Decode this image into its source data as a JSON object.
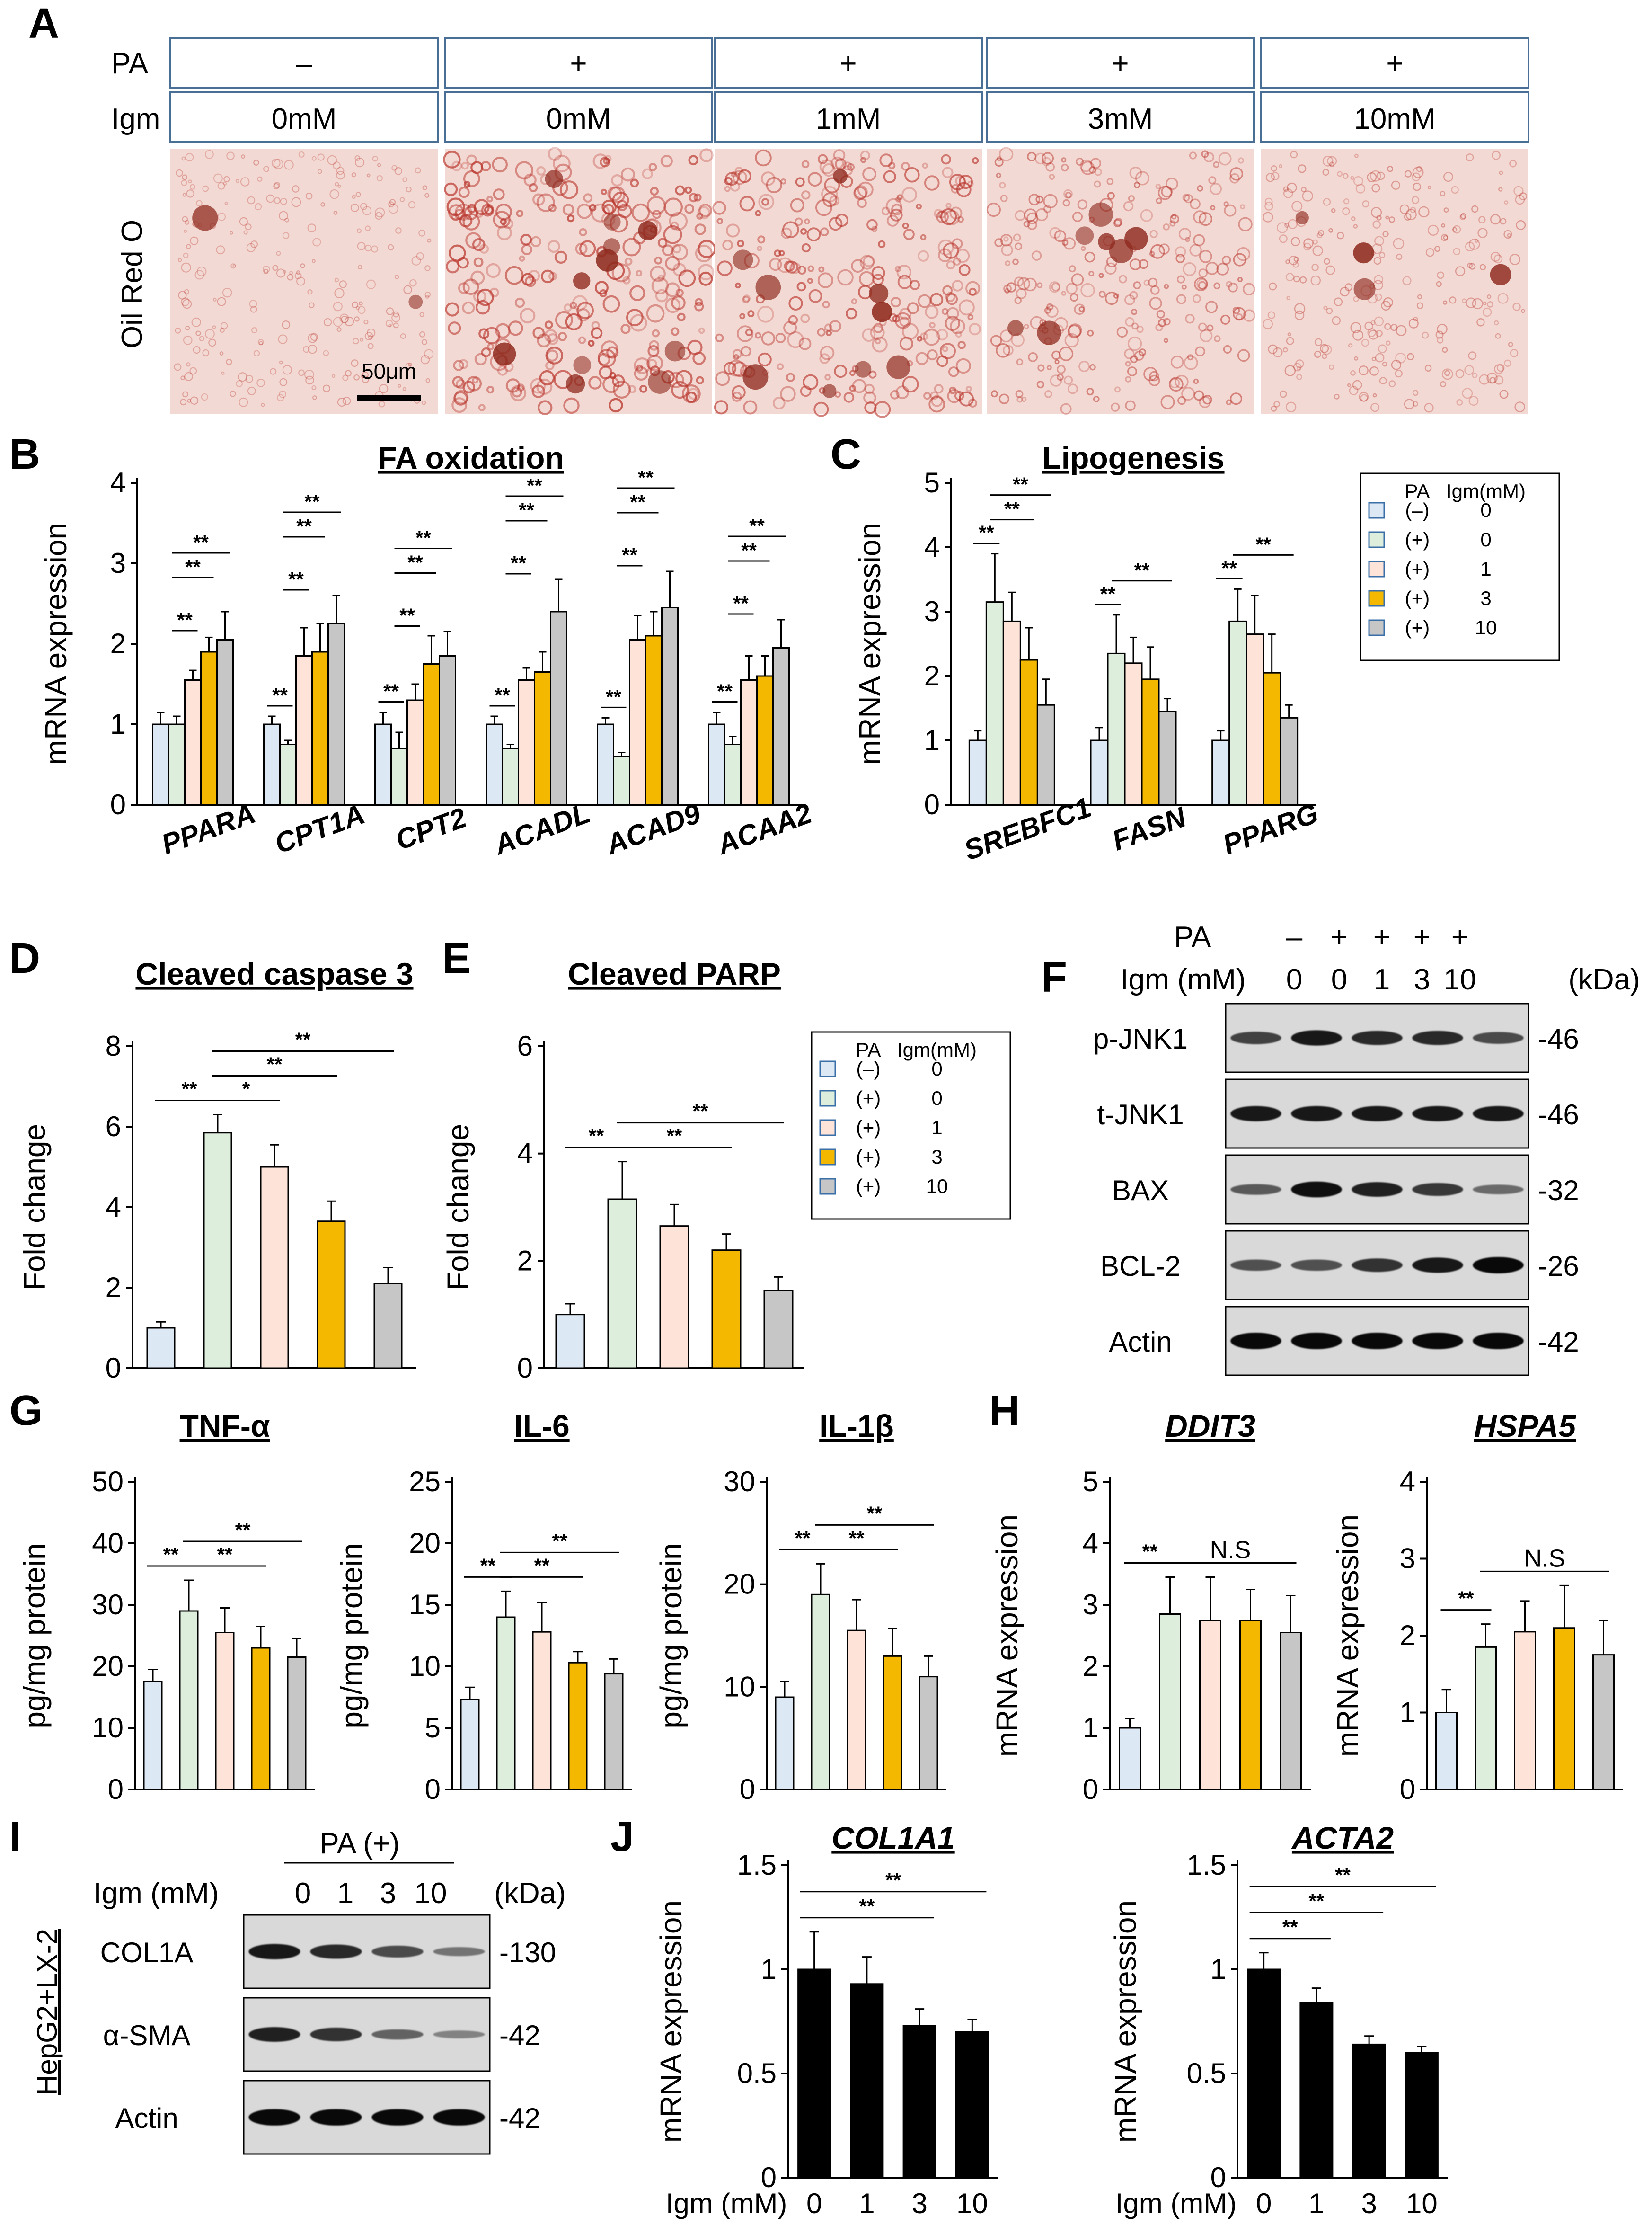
{
  "colors": {
    "groups": [
      "#dce9f5",
      "#ddefdc",
      "#fde3d8",
      "#f5b800",
      "#c6c6c6"
    ],
    "black_bar": "#000000",
    "header_border": "#4a6f96",
    "stain_bg": "#f3d9d3",
    "stain_droplet": "#b8332a"
  },
  "panel_letters": [
    "A",
    "B",
    "C",
    "D",
    "E",
    "F",
    "G",
    "H",
    "I",
    "J"
  ],
  "panel_a": {
    "row_labels": {
      "pa": "PA",
      "igm": "Igm"
    },
    "pa": [
      "–",
      "+",
      "+",
      "+",
      "+"
    ],
    "igm": [
      "0mM",
      "0mM",
      "1mM",
      "3mM",
      "10mM"
    ],
    "stain_label": "Oil Red O",
    "scale_bar": "50μm",
    "stain_intensity": [
      0.2,
      0.9,
      0.75,
      0.55,
      0.3
    ]
  },
  "legend": {
    "header_pa": "PA",
    "header_igm": "Igm(mM)",
    "pa": [
      "(–)",
      "(+)",
      "(+)",
      "(+)",
      "(+)"
    ],
    "igm": [
      "0",
      "0",
      "1",
      "3",
      "10"
    ]
  },
  "chart_data": [
    {
      "id": "B",
      "type": "bar",
      "title": "FA oxidation",
      "ylabel": "mRNA expression",
      "ylim": [
        0,
        4
      ],
      "yticks": [
        "0",
        "1",
        "2",
        "3",
        "4"
      ],
      "categories": [
        "PPARA",
        "CPT1A",
        "CPT2",
        "ACADL",
        "ACAD9",
        "ACAA2"
      ],
      "series_names": [
        "PA(–) 0",
        "PA(+) 0",
        "PA(+) 1",
        "PA(+) 3",
        "PA(+) 10"
      ],
      "values": [
        [
          1.0,
          1.0,
          1.55,
          1.9,
          2.05
        ],
        [
          1.0,
          0.75,
          1.85,
          1.9,
          2.25
        ],
        [
          1.0,
          0.7,
          1.3,
          1.75,
          1.85
        ],
        [
          1.0,
          0.7,
          1.55,
          1.65,
          2.4
        ],
        [
          1.0,
          0.6,
          2.05,
          2.1,
          2.45
        ],
        [
          1.0,
          0.75,
          1.55,
          1.6,
          1.95
        ]
      ],
      "errors": [
        [
          0.15,
          0.1,
          0.12,
          0.18,
          0.35
        ],
        [
          0.1,
          0.05,
          0.35,
          0.35,
          0.35
        ],
        [
          0.15,
          0.2,
          0.2,
          0.35,
          0.3
        ],
        [
          0.1,
          0.05,
          0.15,
          0.25,
          0.4
        ],
        [
          0.08,
          0.05,
          0.3,
          0.3,
          0.45
        ],
        [
          0.15,
          0.1,
          0.3,
          0.25,
          0.35
        ]
      ],
      "significance": [
        {
          "cat": 0,
          "from": 1,
          "to": 2,
          "label": "**"
        },
        {
          "cat": 0,
          "from": 1,
          "to": 3,
          "label": "**"
        },
        {
          "cat": 0,
          "from": 1,
          "to": 4,
          "label": "**"
        },
        {
          "cat": 1,
          "from": 0,
          "to": 1,
          "label": "**"
        },
        {
          "cat": 1,
          "from": 1,
          "to": 2,
          "label": "**"
        },
        {
          "cat": 1,
          "from": 1,
          "to": 3,
          "label": "**"
        },
        {
          "cat": 1,
          "from": 1,
          "to": 4,
          "label": "**"
        },
        {
          "cat": 2,
          "from": 0,
          "to": 1,
          "label": "**"
        },
        {
          "cat": 2,
          "from": 1,
          "to": 2,
          "label": "**"
        },
        {
          "cat": 2,
          "from": 1,
          "to": 3,
          "label": "**"
        },
        {
          "cat": 2,
          "from": 1,
          "to": 4,
          "label": "**"
        },
        {
          "cat": 3,
          "from": 0,
          "to": 1,
          "label": "**"
        },
        {
          "cat": 3,
          "from": 1,
          "to": 2,
          "label": "**"
        },
        {
          "cat": 3,
          "from": 1,
          "to": 3,
          "label": "**"
        },
        {
          "cat": 3,
          "from": 1,
          "to": 4,
          "label": "**"
        },
        {
          "cat": 4,
          "from": 0,
          "to": 1,
          "label": "**"
        },
        {
          "cat": 4,
          "from": 1,
          "to": 2,
          "label": "**"
        },
        {
          "cat": 4,
          "from": 1,
          "to": 3,
          "label": "**"
        },
        {
          "cat": 4,
          "from": 1,
          "to": 4,
          "label": "**"
        },
        {
          "cat": 5,
          "from": 0,
          "to": 1,
          "label": "**"
        },
        {
          "cat": 5,
          "from": 1,
          "to": 2,
          "label": "**"
        },
        {
          "cat": 5,
          "from": 1,
          "to": 3,
          "label": "**"
        },
        {
          "cat": 5,
          "from": 1,
          "to": 4,
          "label": "**"
        }
      ]
    },
    {
      "id": "C",
      "type": "bar",
      "title": "Lipogenesis",
      "ylabel": "mRNA expression",
      "ylim": [
        0,
        5
      ],
      "yticks": [
        "0",
        "1",
        "2",
        "3",
        "4",
        "5"
      ],
      "categories": [
        "SREBFC1",
        "FASN",
        "PPARG"
      ],
      "series_names": [
        "PA(–) 0",
        "PA(+) 0",
        "PA(+) 1",
        "PA(+) 3",
        "PA(+) 10"
      ],
      "values": [
        [
          1.0,
          3.15,
          2.85,
          2.25,
          1.55
        ],
        [
          1.0,
          2.35,
          2.2,
          1.95,
          1.45
        ],
        [
          1.0,
          2.85,
          2.65,
          2.05,
          1.35
        ]
      ],
      "errors": [
        [
          0.15,
          0.75,
          0.45,
          0.5,
          0.4
        ],
        [
          0.2,
          0.6,
          0.4,
          0.5,
          0.2
        ],
        [
          0.15,
          0.5,
          0.6,
          0.6,
          0.2
        ]
      ],
      "significance": [
        {
          "cat": 0,
          "from": 0,
          "to": 1,
          "label": "**"
        },
        {
          "cat": 0,
          "from": 1,
          "to": 3,
          "label": "**"
        },
        {
          "cat": 0,
          "from": 1,
          "to": 4,
          "label": "**"
        },
        {
          "cat": 1,
          "from": 0,
          "to": 1,
          "label": "**"
        },
        {
          "cat": 1,
          "from": 1,
          "to": 4,
          "label": "**"
        },
        {
          "cat": 2,
          "from": 0,
          "to": 1,
          "label": "**"
        },
        {
          "cat": 2,
          "from": 1,
          "to": 4,
          "label": "**"
        }
      ]
    },
    {
      "id": "D",
      "type": "bar",
      "title": "Cleaved caspase 3",
      "ylabel": "Fold change",
      "ylim": [
        0,
        8
      ],
      "yticks": [
        "0",
        "2",
        "4",
        "6",
        "8"
      ],
      "categories": [
        "PA(–) 0",
        "PA(+) 0",
        "PA(+) 1",
        "PA(+) 3",
        "PA(+) 10"
      ],
      "values": [
        1.0,
        5.85,
        5.0,
        3.65,
        2.1
      ],
      "errors": [
        0.15,
        0.45,
        0.55,
        0.5,
        0.4
      ],
      "significance": [
        {
          "from": 0,
          "to": 1,
          "label": "**"
        },
        {
          "from": 1,
          "to": 2,
          "label": "*"
        },
        {
          "from": 1,
          "to": 3,
          "label": "**"
        },
        {
          "from": 1,
          "to": 4,
          "label": "**"
        }
      ]
    },
    {
      "id": "E",
      "type": "bar",
      "title": "Cleaved PARP",
      "ylabel": "Fold change",
      "ylim": [
        0,
        6
      ],
      "yticks": [
        "0",
        "2",
        "4",
        "6"
      ],
      "categories": [
        "PA(–) 0",
        "PA(+) 0",
        "PA(+) 1",
        "PA(+) 3",
        "PA(+) 10"
      ],
      "values": [
        1.0,
        3.15,
        2.65,
        2.2,
        1.45
      ],
      "errors": [
        0.2,
        0.7,
        0.4,
        0.3,
        0.25
      ],
      "significance": [
        {
          "from": 0,
          "to": 1,
          "label": "**"
        },
        {
          "from": 1,
          "to": 3,
          "label": "**"
        },
        {
          "from": 1,
          "to": 4,
          "label": "**"
        }
      ]
    },
    {
      "id": "G1",
      "type": "bar",
      "title": "TNF-α",
      "ylabel": "pg/mg protein",
      "ylim": [
        0,
        50
      ],
      "yticks": [
        "0",
        "10",
        "20",
        "30",
        "40",
        "50"
      ],
      "categories": [
        "PA(–) 0",
        "PA(+) 0",
        "PA(+) 1",
        "PA(+) 3",
        "PA(+) 10"
      ],
      "values": [
        17.5,
        29.0,
        25.5,
        23.0,
        21.5
      ],
      "errors": [
        2.0,
        5.0,
        4.0,
        3.5,
        3.0
      ],
      "significance": [
        {
          "from": 0,
          "to": 1,
          "label": "**"
        },
        {
          "from": 1,
          "to": 3,
          "label": "**"
        },
        {
          "from": 1,
          "to": 4,
          "label": "**"
        }
      ]
    },
    {
      "id": "G2",
      "type": "bar",
      "title": "IL-6",
      "ylabel": "pg/mg protein",
      "ylim": [
        0,
        25
      ],
      "yticks": [
        "0",
        "5",
        "10",
        "15",
        "20",
        "25"
      ],
      "categories": [
        "PA(–) 0",
        "PA(+) 0",
        "PA(+) 1",
        "PA(+) 3",
        "PA(+) 10"
      ],
      "values": [
        7.3,
        14.0,
        12.8,
        10.3,
        9.4
      ],
      "errors": [
        1.0,
        2.1,
        2.4,
        0.9,
        1.2
      ],
      "significance": [
        {
          "from": 0,
          "to": 1,
          "label": "**"
        },
        {
          "from": 1,
          "to": 3,
          "label": "**"
        },
        {
          "from": 1,
          "to": 4,
          "label": "**"
        }
      ]
    },
    {
      "id": "G3",
      "type": "bar",
      "title": "IL-1β",
      "ylabel": "pg/mg protein",
      "ylim": [
        0,
        30
      ],
      "yticks": [
        "0",
        "10",
        "20",
        "30"
      ],
      "categories": [
        "PA(–) 0",
        "PA(+) 0",
        "PA(+) 1",
        "PA(+) 3",
        "PA(+) 10"
      ],
      "values": [
        9.0,
        19.0,
        15.5,
        13.0,
        11.0
      ],
      "errors": [
        1.5,
        3.0,
        3.0,
        2.7,
        2.0
      ],
      "significance": [
        {
          "from": 0,
          "to": 1,
          "label": "**"
        },
        {
          "from": 1,
          "to": 3,
          "label": "**"
        },
        {
          "from": 1,
          "to": 4,
          "label": "**"
        }
      ]
    },
    {
      "id": "H1",
      "type": "bar",
      "title": "DDIT3",
      "ylabel": "mRNA expression",
      "ylim": [
        0,
        5
      ],
      "yticks": [
        "0",
        "1",
        "2",
        "3",
        "4",
        "5"
      ],
      "categories": [
        "PA(–) 0",
        "PA(+) 0",
        "PA(+) 1",
        "PA(+) 3",
        "PA(+) 10"
      ],
      "values": [
        1.0,
        2.85,
        2.75,
        2.75,
        2.55
      ],
      "errors": [
        0.15,
        0.6,
        0.7,
        0.5,
        0.6
      ],
      "significance": [
        {
          "from": 0,
          "to": 1,
          "label": "**"
        },
        {
          "from": 1,
          "to": 4,
          "label": "N.S"
        }
      ]
    },
    {
      "id": "H2",
      "type": "bar",
      "title": "HSPA5",
      "ylabel": "mRNA expression",
      "ylim": [
        0,
        4
      ],
      "yticks": [
        "0",
        "1",
        "2",
        "3",
        "4"
      ],
      "categories": [
        "PA(–) 0",
        "PA(+) 0",
        "PA(+) 1",
        "PA(+) 3",
        "PA(+) 10"
      ],
      "values": [
        1.0,
        1.85,
        2.05,
        2.1,
        1.75
      ],
      "errors": [
        0.3,
        0.3,
        0.4,
        0.55,
        0.45
      ],
      "significance": [
        {
          "from": 0,
          "to": 1,
          "label": "**"
        },
        {
          "from": 1,
          "to": 4,
          "label": "N.S"
        }
      ]
    },
    {
      "id": "J1",
      "type": "bar",
      "title": "COL1A1",
      "ylabel": "mRNA expression",
      "xlabel": "Igm (mM)",
      "ylim": [
        0,
        1.5
      ],
      "yticks": [
        "0",
        "0.5",
        "1",
        "1.5"
      ],
      "categories": [
        "0",
        "1",
        "3",
        "10"
      ],
      "values": [
        1.0,
        0.93,
        0.73,
        0.7
      ],
      "errors": [
        0.18,
        0.13,
        0.08,
        0.06
      ],
      "significance": [
        {
          "from": 0,
          "to": 2,
          "label": "**"
        },
        {
          "from": 0,
          "to": 3,
          "label": "**"
        }
      ]
    },
    {
      "id": "J2",
      "type": "bar",
      "title": "ACTA2",
      "ylabel": "mRNA expression",
      "xlabel": "Igm (mM)",
      "ylim": [
        0,
        1.5
      ],
      "yticks": [
        "0",
        "0.5",
        "1",
        "1.5"
      ],
      "categories": [
        "0",
        "1",
        "3",
        "10"
      ],
      "values": [
        1.0,
        0.84,
        0.64,
        0.6
      ],
      "errors": [
        0.08,
        0.07,
        0.04,
        0.03
      ],
      "significance": [
        {
          "from": 0,
          "to": 1,
          "label": "**"
        },
        {
          "from": 0,
          "to": 2,
          "label": "**"
        },
        {
          "from": 0,
          "to": 3,
          "label": "**"
        }
      ]
    }
  ],
  "panel_f": {
    "pa_label": "PA",
    "igm_label": "Igm (mM)",
    "kda_label": "(kDa)",
    "pa": [
      "–",
      "+",
      "+",
      "+",
      "+"
    ],
    "igm": [
      "0",
      "0",
      "1",
      "3",
      "10"
    ],
    "blots": [
      {
        "protein": "p-JNK1",
        "kda": "-46",
        "intensity": [
          0.6,
          0.85,
          0.75,
          0.75,
          0.55
        ]
      },
      {
        "protein": "t-JNK1",
        "kda": "-46",
        "intensity": [
          0.85,
          0.85,
          0.85,
          0.85,
          0.85
        ]
      },
      {
        "protein": "BAX",
        "kda": "-32",
        "intensity": [
          0.45,
          0.9,
          0.8,
          0.65,
          0.35
        ]
      },
      {
        "protein": "BCL-2",
        "kda": "-26",
        "intensity": [
          0.5,
          0.5,
          0.7,
          0.85,
          0.95
        ]
      },
      {
        "protein": "Actin",
        "kda": "-42",
        "intensity": [
          0.95,
          0.95,
          0.95,
          0.95,
          0.95
        ]
      }
    ]
  },
  "panel_i": {
    "pa_label": "PA (+)",
    "igm_label": "Igm (mM)",
    "kda_label": "(kDa)",
    "side_label": "HepG2+LX-2",
    "igm": [
      "0",
      "1",
      "3",
      "10"
    ],
    "blots": [
      {
        "protein": "COL1A",
        "kda": "-130",
        "intensity": [
          0.85,
          0.75,
          0.55,
          0.3
        ]
      },
      {
        "protein": "α-SMA",
        "kda": "-42",
        "intensity": [
          0.8,
          0.7,
          0.4,
          0.2
        ]
      },
      {
        "protein": "Actin",
        "kda": "-42",
        "intensity": [
          0.95,
          0.95,
          0.95,
          0.95
        ]
      }
    ]
  }
}
